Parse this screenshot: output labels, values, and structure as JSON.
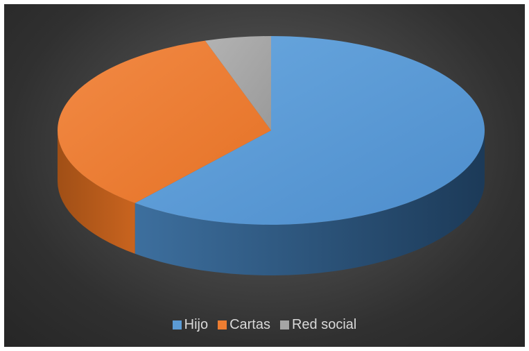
{
  "chart_data": {
    "type": "pie",
    "style": "3d",
    "title": "",
    "legend_position": "bottom",
    "start_angle_deg": 0,
    "direction": "clockwise",
    "slices": [
      {
        "label": "Hijo",
        "value": 61,
        "color": "#5b9bd5"
      },
      {
        "label": "Cartas",
        "value": 34,
        "color": "#ed7d31"
      },
      {
        "label": "Red social",
        "value": 5,
        "color": "#a5a5a5"
      }
    ]
  }
}
